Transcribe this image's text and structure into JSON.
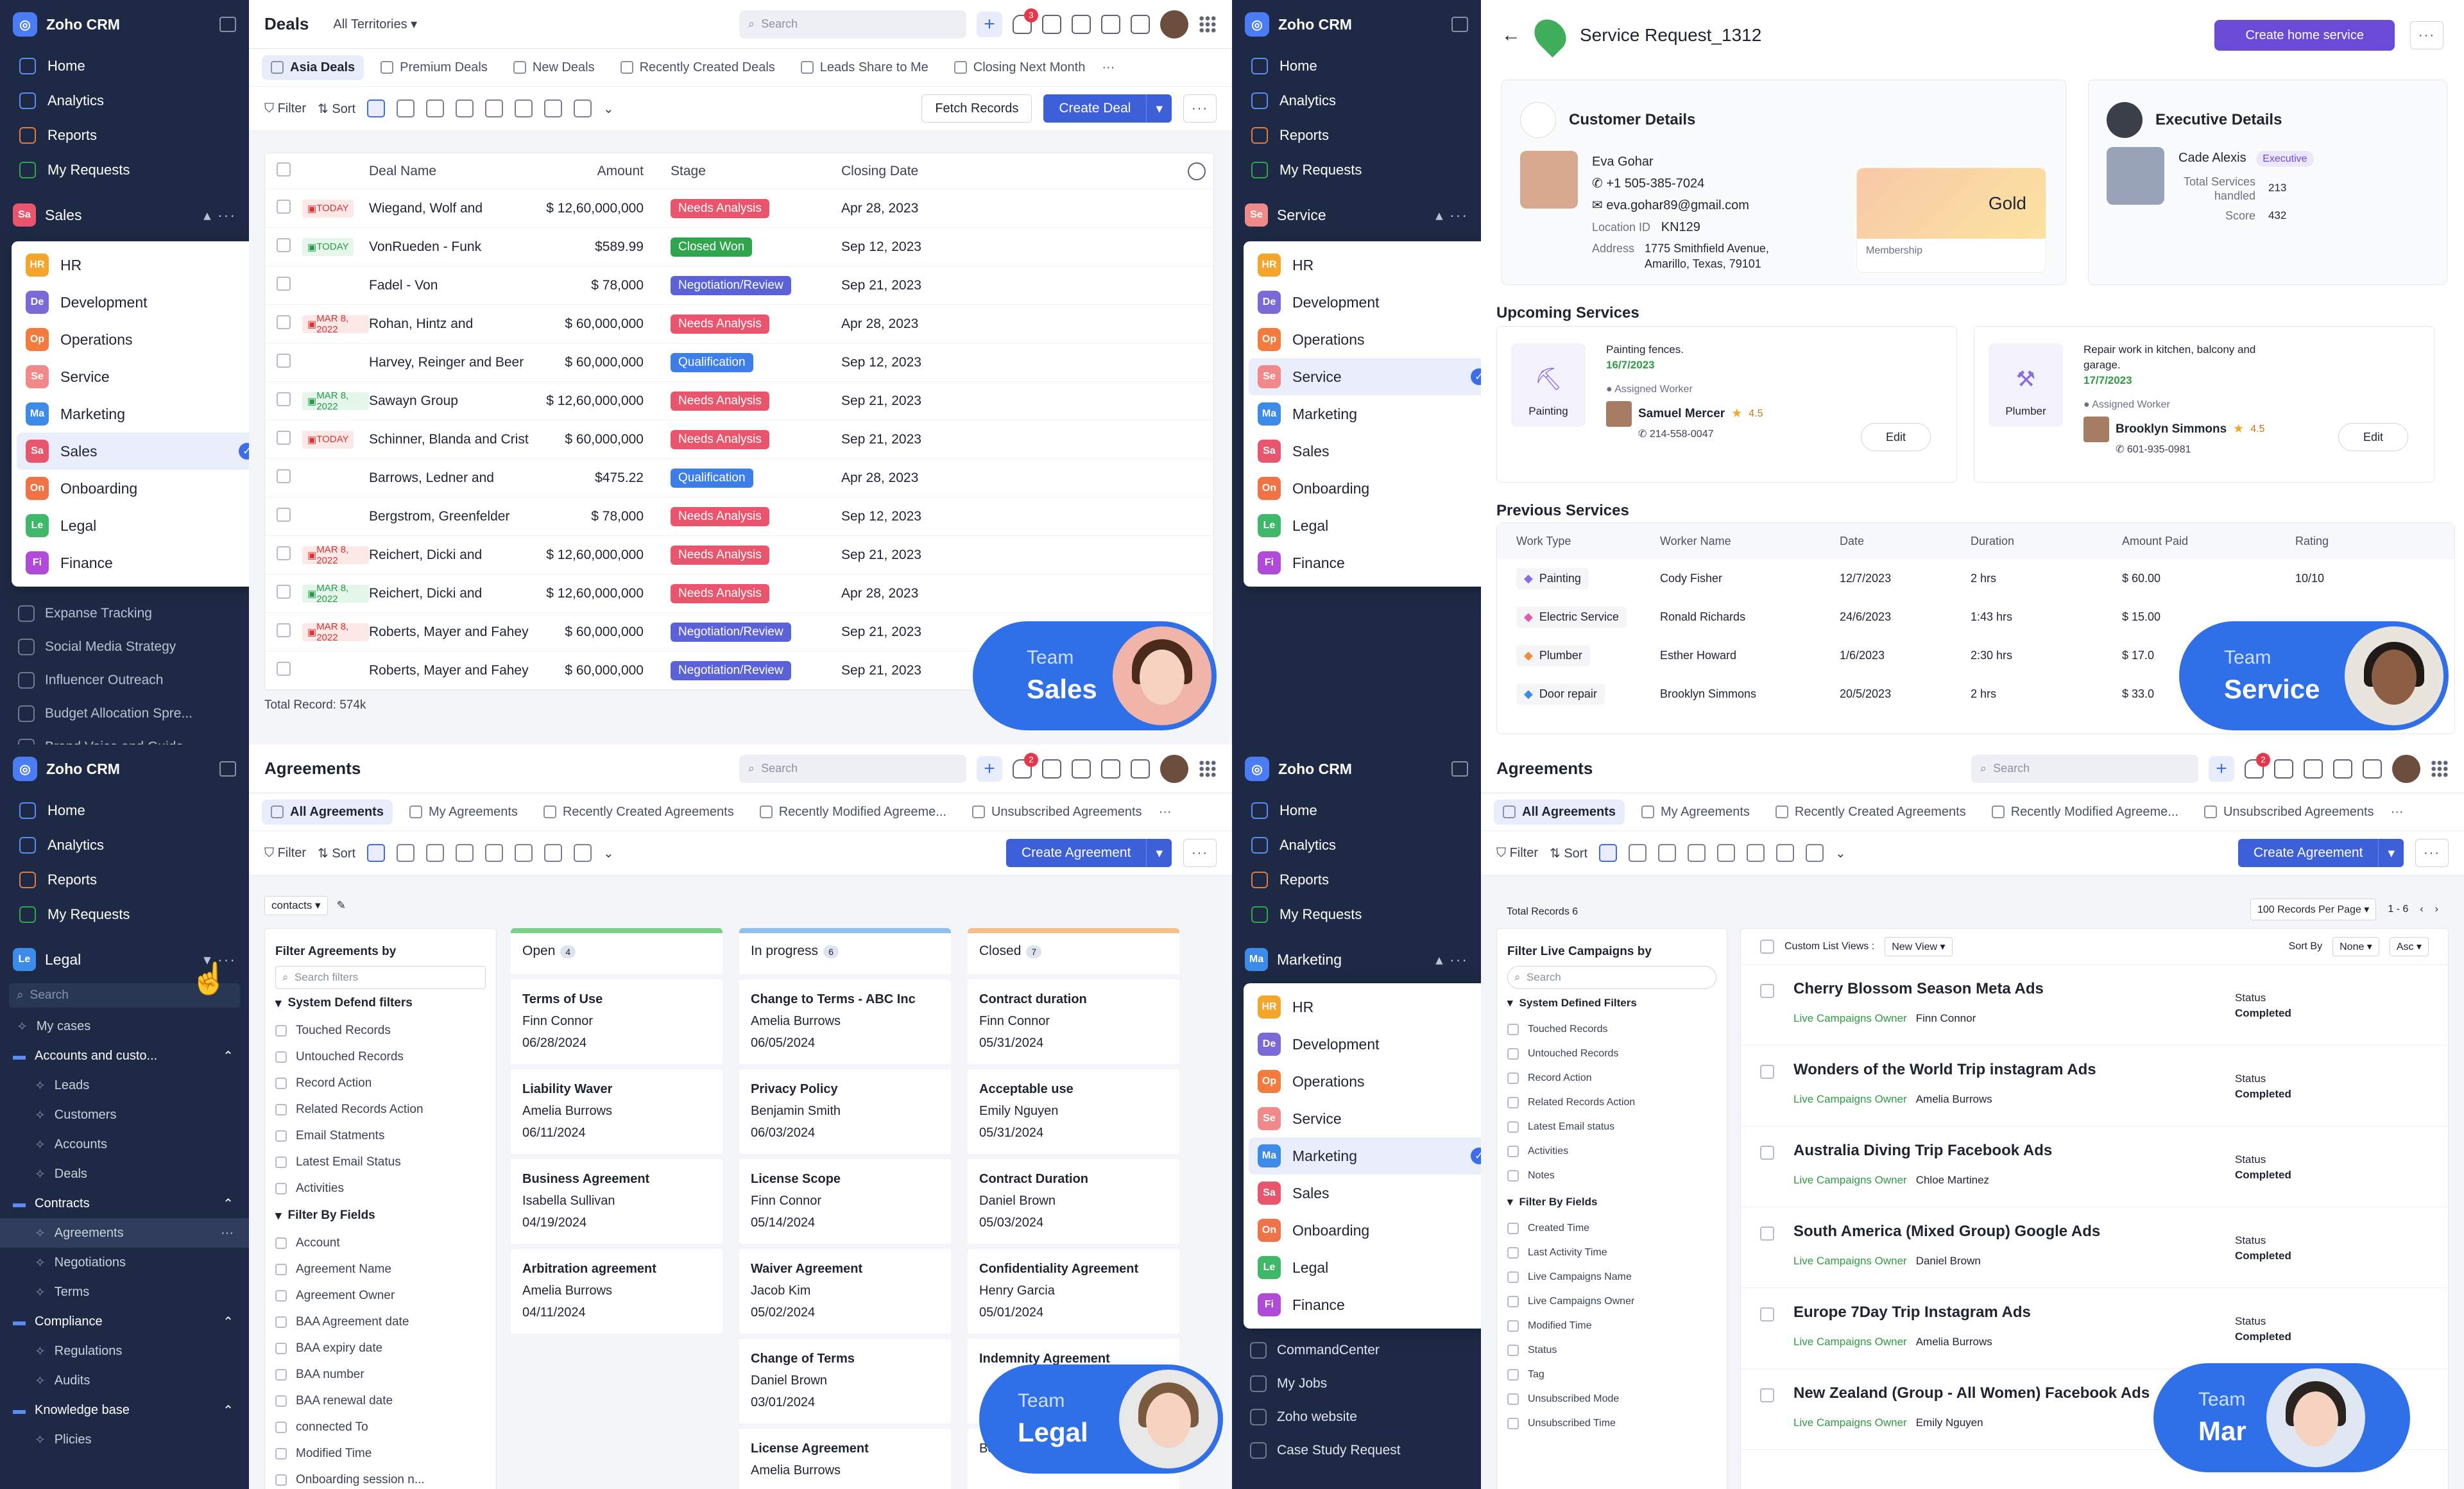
{
  "app": {
    "name": "Zoho CRM"
  },
  "nav": [
    "Home",
    "Analytics",
    "Reports",
    "My Requests"
  ],
  "modules": [
    {
      "code": "HR",
      "name": "HR",
      "color": "#f4a52b"
    },
    {
      "code": "De",
      "name": "Development",
      "color": "#7a6ad8"
    },
    {
      "code": "Op",
      "name": "Operations",
      "color": "#f27b3d"
    },
    {
      "code": "Se",
      "name": "Service",
      "color": "#f08a8a"
    },
    {
      "code": "Ma",
      "name": "Marketing",
      "color": "#3d8be8"
    },
    {
      "code": "Sa",
      "name": "Sales",
      "color": "#e8556c"
    },
    {
      "code": "On",
      "name": "Onboarding",
      "color": "#f07347"
    },
    {
      "code": "Le",
      "name": "Legal",
      "color": "#3fb86a"
    },
    {
      "code": "Fi",
      "name": "Finance",
      "color": "#b04ad8"
    }
  ],
  "q1": {
    "module": {
      "code": "Sa",
      "name": "Sales"
    },
    "title": "Deals",
    "territory": "All Territories",
    "search": "Search",
    "notif": "3",
    "tabs": [
      "Asia Deals",
      "Premium Deals",
      "New Deals",
      "Recently Created Deals",
      "Leads Share to Me",
      "Closing Next Month"
    ],
    "filter": "Filter",
    "sort": "Sort",
    "fetch": "Fetch Records",
    "create": "Create Deal",
    "cols": [
      "Deal Name",
      "Amount",
      "Stage",
      "Closing Date"
    ],
    "rows": [
      {
        "tag": "TODAY",
        "tagc": "r",
        "name": "Wiegand, Wolf and",
        "amt": "$ 12,60,000,000",
        "stage": "Needs Analysis",
        "sc": "#e8556c",
        "date": "Apr 28, 2023"
      },
      {
        "tag": "TODAY",
        "tagc": "g",
        "name": "VonRueden - Funk",
        "amt": "$589.99",
        "stage": "Closed Won",
        "sc": "#2fa64d",
        "date": "Sep 12, 2023"
      },
      {
        "tag": "",
        "tagc": "",
        "name": "Fadel - Von",
        "amt": "$ 78,000",
        "stage": "Negotiation/Review",
        "sc": "#5b62d8",
        "date": "Sep 21, 2023"
      },
      {
        "tag": "MAR 8, 2022",
        "tagc": "r",
        "name": "Rohan, Hintz and",
        "amt": "$ 60,000,000",
        "stage": "Needs Analysis",
        "sc": "#e8556c",
        "date": "Apr 28, 2023"
      },
      {
        "tag": "",
        "tagc": "",
        "name": "Harvey, Reinger and Beer",
        "amt": "$ 60,000,000",
        "stage": "Qualification",
        "sc": "#3d7ee8",
        "date": "Sep 12, 2023"
      },
      {
        "tag": "MAR 8, 2022",
        "tagc": "g",
        "name": "Sawayn Group",
        "amt": "$ 12,60,000,000",
        "stage": "Needs Analysis",
        "sc": "#e8556c",
        "date": "Sep 21, 2023"
      },
      {
        "tag": "TODAY",
        "tagc": "r",
        "name": "Schinner, Blanda and Crist",
        "amt": "$ 60,000,000",
        "stage": "Needs Analysis",
        "sc": "#e8556c",
        "date": "Sep 21, 2023"
      },
      {
        "tag": "",
        "tagc": "",
        "name": "Barrows, Ledner and",
        "amt": "$475.22",
        "stage": "Qualification",
        "sc": "#3d7ee8",
        "date": "Apr 28, 2023"
      },
      {
        "tag": "",
        "tagc": "",
        "name": "Bergstrom, Greenfelder",
        "amt": "$ 78,000",
        "stage": "Needs Analysis",
        "sc": "#e8556c",
        "date": "Sep 12, 2023"
      },
      {
        "tag": "MAR 8, 2022",
        "tagc": "r",
        "name": "Reichert, Dicki and",
        "amt": "$ 12,60,000,000",
        "stage": "Needs Analysis",
        "sc": "#e8556c",
        "date": "Sep 21, 2023"
      },
      {
        "tag": "MAR 8, 2022",
        "tagc": "g",
        "name": "Reichert, Dicki and",
        "amt": "$ 12,60,000,000",
        "stage": "Needs Analysis",
        "sc": "#e8556c",
        "date": "Apr 28, 2023"
      },
      {
        "tag": "MAR 8, 2022",
        "tagc": "r",
        "name": "Roberts, Mayer and Fahey",
        "amt": "$ 60,000,000",
        "stage": "Negotiation/Review",
        "sc": "#5b62d8",
        "date": "Sep 21, 2023"
      },
      {
        "tag": "",
        "tagc": "",
        "name": "Roberts, Mayer and Fahey",
        "amt": "$ 60,000,000",
        "stage": "Negotiation/Review",
        "sc": "#5b62d8",
        "date": "Sep 21, 2023"
      }
    ],
    "extra": [
      "Expanse Tracking",
      "Social Media Strategy",
      "Influencer Outreach",
      "Budget Allocation Spre...",
      "Brand Voice and Guide..."
    ],
    "total": "Total Record: 574k",
    "team": {
      "t1": "Team",
      "t2": "Sales"
    }
  },
  "q2": {
    "module": {
      "code": "Se",
      "name": "Service"
    },
    "title": "Service Request_1312",
    "create": "Create home service",
    "cust": {
      "h": "Customer Details",
      "name": "Eva Gohar",
      "phone": "+1 505-385-7024",
      "email": "eva.gohar89@gmail.com",
      "loc_l": "Location ID",
      "loc": "KN129",
      "addr_l": "Address",
      "addr": "1775 Smithfield Avenue, Amarillo, Texas, 79101",
      "tier": "Gold",
      "mem": "Membership"
    },
    "exec": {
      "h": "Executive Details",
      "name": "Cade Alexis",
      "badge": "Executive",
      "ts_l": "Total Services handled",
      "ts": "213",
      "sc_l": "Score",
      "sc": "432"
    },
    "up": "Upcoming Services",
    "svc": [
      {
        "type": "Painting",
        "title": "Painting fences.",
        "date": "16/7/2023",
        "aw": "Assigned Worker",
        "worker": "Samuel Mercer",
        "rate": "4.5",
        "phone": "214-558-0047",
        "edit": "Edit"
      },
      {
        "type": "Plumber",
        "title": "Repair work in kitchen, balcony and garage.",
        "date": "17/7/2023",
        "aw": "Assigned Worker",
        "worker": "Brooklyn Simmons",
        "rate": "4.5",
        "phone": "601-935-0981",
        "edit": "Edit"
      }
    ],
    "prev": "Previous Services",
    "pcols": [
      "Work Type",
      "Worker Name",
      "Date",
      "Duration",
      "Amount Paid",
      "Rating"
    ],
    "prows": [
      {
        "wt": "Painting",
        "wn": "Cody Fisher",
        "d": "12/7/2023",
        "du": "2 hrs",
        "am": "$ 60.00",
        "r": "10/10"
      },
      {
        "wt": "Electric Service",
        "wn": "Ronald Richards",
        "d": "24/6/2023",
        "du": "1:43 hrs",
        "am": "$ 15.00",
        "r": ""
      },
      {
        "wt": "Plumber",
        "wn": "Esther Howard",
        "d": "1/6/2023",
        "du": "2:30 hrs",
        "am": "$ 17.0",
        "r": ""
      },
      {
        "wt": "Door repair",
        "wn": "Brooklyn Simmons",
        "d": "20/5/2023",
        "du": "2 hrs",
        "am": "$ 33.0",
        "r": ""
      }
    ],
    "team": {
      "t1": "Team",
      "t2": "Service"
    }
  },
  "q3": {
    "module": {
      "code": "Le",
      "name": "Legal"
    },
    "title": "Agreements",
    "search": "Search",
    "notif": "2",
    "tabs": [
      "All Agreements",
      "My Agreements",
      "Recently Created Agreements",
      "Recently Modified Agreeme...",
      "Unsubscribed Agreements"
    ],
    "create": "Create Agreement",
    "contacts": "contacts",
    "tree": [
      {
        "t": "My cases",
        "l": 1
      },
      {
        "t": "Accounts and custo...",
        "l": 0
      },
      {
        "t": "Leads",
        "l": 2
      },
      {
        "t": "Customers",
        "l": 2
      },
      {
        "t": "Accounts",
        "l": 2
      },
      {
        "t": "Deals",
        "l": 2
      },
      {
        "t": "Contracts",
        "l": 0
      },
      {
        "t": "Agreements",
        "l": 2,
        "sel": true
      },
      {
        "t": "Negotiations",
        "l": 2
      },
      {
        "t": "Terms",
        "l": 2
      },
      {
        "t": "Compliance",
        "l": 0
      },
      {
        "t": "Regulations",
        "l": 2
      },
      {
        "t": "Audits",
        "l": 2
      },
      {
        "t": "Knowledge base",
        "l": 0
      },
      {
        "t": "Plicies",
        "l": 2
      }
    ],
    "fh": "Filter Agreements by",
    "fs": "Search filters",
    "g1": "System Defend filters",
    "f1": [
      "Touched Records",
      "Untouched Records",
      "Record Action",
      "Related Records Action",
      "Email Statments",
      "Latest Email Status",
      "Activities"
    ],
    "g2": "Filter By Fields",
    "f2": [
      "Account",
      "Agreement Name",
      "Agreement Owner",
      "BAA Agreement date",
      "BAA expiry date",
      "BAA number",
      "BAA renewal date",
      "connected To",
      "Modified Time",
      "Onboarding session n..."
    ],
    "cols": [
      {
        "n": "Open",
        "c": "4",
        "color": "#7fcf8a",
        "cards": [
          [
            "Terms of Use",
            "Finn Connor",
            "06/28/2024"
          ],
          [
            "Liability Waver",
            "Amelia Burrows",
            "06/11/2024"
          ],
          [
            "Business Agreement",
            "Isabella Sullivan",
            "04/19/2024"
          ],
          [
            "Arbitration agreement",
            "Amelia Burrows",
            "04/11/2024"
          ]
        ]
      },
      {
        "n": "In progress",
        "c": "6",
        "color": "#8fc1ef",
        "cards": [
          [
            "Change to Terms - ABC Inc",
            "Amelia Burrows",
            "06/05/2024"
          ],
          [
            "Privacy Policy",
            "Benjamin Smith",
            "06/03/2024"
          ],
          [
            "License Scope",
            "Finn Connor",
            "05/14/2024"
          ],
          [
            "Waiver Agreement",
            "Jacob Kim",
            "05/02/2024"
          ],
          [
            "Change of Terms",
            "Daniel Brown",
            "03/01/2024"
          ],
          [
            "License Agreement",
            "Amelia Burrows",
            ""
          ]
        ]
      },
      {
        "n": "Closed",
        "c": "7",
        "color": "#f5c08a",
        "cards": [
          [
            "Contract duration",
            "Finn Connor",
            "05/31/2024"
          ],
          [
            "Acceptable use",
            "Emily Nguyen",
            "05/31/2024"
          ],
          [
            "Contract Duration",
            "Daniel Brown",
            "05/03/2024"
          ],
          [
            "Confidentiality Agreement",
            "Henry Garcia",
            "05/01/2024"
          ],
          [
            "Indemnity Agreement",
            "",
            ""
          ],
          [
            "",
            "Benjamin Smith",
            ""
          ]
        ]
      }
    ],
    "team": {
      "t1": "Team",
      "t2": "Legal"
    }
  },
  "q4": {
    "module": {
      "code": "Ma",
      "name": "Marketing"
    },
    "title": "Agreements",
    "search": "Search",
    "notif": "2",
    "tabs": [
      "All Agreements",
      "My Agreements",
      "Recently Created Agreements",
      "Recently Modified Agreeme...",
      "Unsubscribed Agreements"
    ],
    "create": "Create Agreement",
    "total": "Total Records",
    "total_n": "6",
    "perpage": "100 Records Per Page",
    "range": "1 - 6",
    "clv": "Custom List Views :",
    "view": "New View",
    "sortby": "Sort By",
    "sortv": "None",
    "order": "Asc",
    "extra": [
      "CommandCenter",
      "My Jobs",
      "Zoho website",
      "Case Study Request"
    ],
    "fh": "Filter Live Campaigns by",
    "fs": "Search",
    "g1": "System Defined Filters",
    "f1": [
      "Touched Records",
      "Untouched Records",
      "Record Action",
      "Related Records Action",
      "Latest Email status",
      "Activities",
      "Notes"
    ],
    "g2": "Filter By Fields",
    "f2": [
      "Created Time",
      "Last Activity Time",
      "Live Campaigns Name",
      "Live Campaigns Owner",
      "Modified Time",
      "Status",
      "Tag",
      "Unsubscribed Mode",
      "Unsubscribed Time"
    ],
    "owner_l": "Live Campaigns Owner",
    "status_l": "Status",
    "camps": [
      {
        "t": "Cherry Blossom Season Meta Ads",
        "o": "Finn Connor",
        "s": "Completed"
      },
      {
        "t": "Wonders of the World Trip instagram Ads",
        "o": "Amelia Burrows",
        "s": "Completed"
      },
      {
        "t": "Australia Diving Trip Facebook Ads",
        "o": "Chloe Martinez",
        "s": "Completed"
      },
      {
        "t": "South America (Mixed Group) Google Ads",
        "o": "Daniel Brown",
        "s": "Completed"
      },
      {
        "t": "Europe 7Day Trip Instagram Ads",
        "o": "Amelia Burrows",
        "s": "Completed"
      },
      {
        "t": "New Zealand (Group - All Women) Facebook Ads",
        "o": "Emily Nguyen",
        "s": ""
      }
    ],
    "team": {
      "t1": "Team",
      "t2": "Mar"
    }
  }
}
